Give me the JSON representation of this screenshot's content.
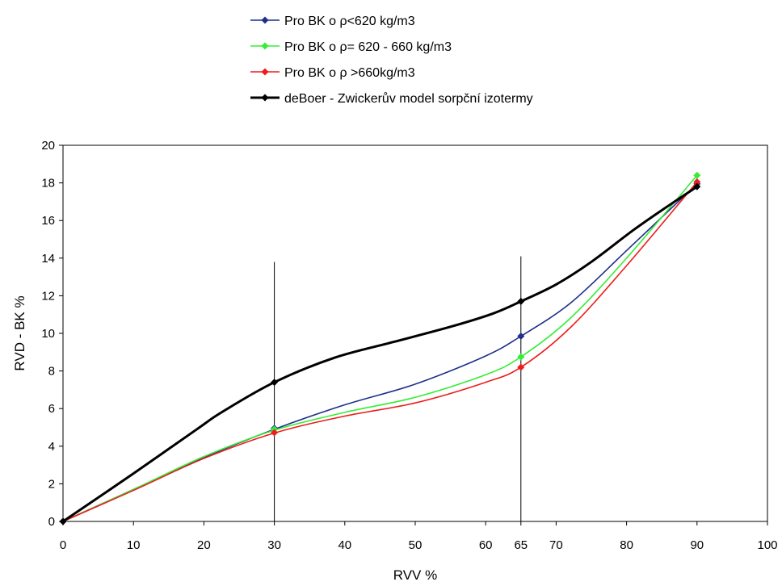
{
  "chart_data": {
    "type": "line",
    "xlabel": "RVV %",
    "ylabel": "RVD - BK %",
    "xlim": [
      0,
      100
    ],
    "ylim": [
      0,
      20
    ],
    "xticks": [
      0,
      10,
      20,
      30,
      40,
      50,
      60,
      65,
      70,
      80,
      90,
      100
    ],
    "yticks": [
      0,
      2,
      4,
      6,
      8,
      10,
      12,
      14,
      16,
      18,
      20
    ],
    "grid": false,
    "legend_position": "top",
    "vertical_markers": [
      30,
      65
    ],
    "series": [
      {
        "name": "Pro BK o ρ<620 kg/m3",
        "color": "#1f2f8a",
        "curve": [
          [
            0,
            0
          ],
          [
            10,
            1.7
          ],
          [
            20,
            3.4
          ],
          [
            30,
            4.9
          ],
          [
            40,
            6.2
          ],
          [
            50,
            7.3
          ],
          [
            60,
            8.8
          ],
          [
            65,
            9.85
          ],
          [
            72,
            11.6
          ],
          [
            80,
            14.4
          ],
          [
            90,
            17.95
          ]
        ],
        "markers": [
          [
            0,
            0
          ],
          [
            30,
            4.95
          ],
          [
            65,
            9.85
          ],
          [
            90,
            17.95
          ]
        ]
      },
      {
        "name": "Pro BK o ρ= 620 - 660 kg/m3",
        "color": "#33ee33",
        "curve": [
          [
            0,
            0
          ],
          [
            10,
            1.7
          ],
          [
            20,
            3.45
          ],
          [
            30,
            4.85
          ],
          [
            40,
            5.8
          ],
          [
            50,
            6.6
          ],
          [
            60,
            7.8
          ],
          [
            65,
            8.75
          ],
          [
            72,
            10.8
          ],
          [
            80,
            14.0
          ],
          [
            90,
            18.4
          ]
        ],
        "markers": [
          [
            0,
            0
          ],
          [
            30,
            4.9
          ],
          [
            65,
            8.75
          ],
          [
            90,
            18.4
          ]
        ]
      },
      {
        "name": "Pro BK o ρ >660kg/m3",
        "color": "#ee1c1c",
        "curve": [
          [
            0,
            0
          ],
          [
            10,
            1.65
          ],
          [
            20,
            3.35
          ],
          [
            30,
            4.7
          ],
          [
            40,
            5.6
          ],
          [
            50,
            6.3
          ],
          [
            60,
            7.4
          ],
          [
            65,
            8.2
          ],
          [
            72,
            10.3
          ],
          [
            80,
            13.6
          ],
          [
            90,
            18.05
          ]
        ],
        "markers": [
          [
            0,
            0
          ],
          [
            30,
            4.72
          ],
          [
            65,
            8.2
          ],
          [
            90,
            18.05
          ]
        ]
      },
      {
        "name": "deBoer - Zwickerův model sorpční izotermy",
        "color": "#000000",
        "curve": [
          [
            0,
            0
          ],
          [
            10,
            2.55
          ],
          [
            19,
            4.9
          ],
          [
            22.5,
            5.8
          ],
          [
            30,
            7.4
          ],
          [
            38.5,
            8.7
          ],
          [
            47,
            9.55
          ],
          [
            55,
            10.35
          ],
          [
            61,
            11.05
          ],
          [
            65,
            11.7
          ],
          [
            70,
            12.6
          ],
          [
            75,
            13.8
          ],
          [
            81,
            15.5
          ],
          [
            86,
            16.8
          ],
          [
            90,
            17.8
          ]
        ],
        "markers": [
          [
            0,
            0
          ],
          [
            30,
            7.4
          ],
          [
            65,
            11.7
          ],
          [
            90,
            17.8
          ]
        ]
      }
    ]
  }
}
